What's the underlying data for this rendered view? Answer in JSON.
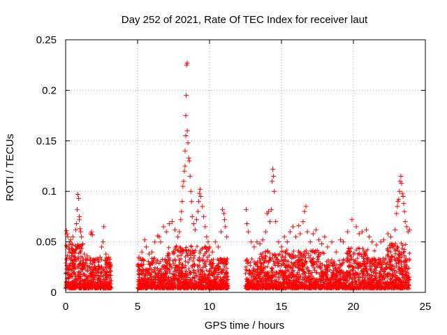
{
  "chart_data": {
    "type": "scatter",
    "title": "Day 252 of 2021, Rate Of TEC Index for receiver laut",
    "xlabel": "GPS time / hours",
    "ylabel": "ROTI / TECUs",
    "xlim": [
      0,
      25
    ],
    "ylim": [
      0,
      0.25
    ],
    "x_ticks": [
      0,
      5,
      10,
      15,
      20,
      25
    ],
    "x_tick_labels": [
      "0",
      "5",
      "10",
      "15",
      "20",
      "25"
    ],
    "y_ticks": [
      0,
      0.05,
      0.1,
      0.15,
      0.2,
      0.25
    ],
    "y_tick_labels": [
      "0",
      "0.05",
      "0.1",
      "0.15",
      "0.2",
      "0.25"
    ],
    "grid": true,
    "marker": "plus",
    "marker_color": "#ff0000",
    "data_gaps_hours": [
      [
        3.2,
        5.0
      ],
      [
        11.3,
        12.5
      ]
    ],
    "series": [
      {
        "name": "ROTI",
        "points": [
          [
            0.05,
            0.061
          ],
          [
            0.1,
            0.058
          ],
          [
            0.15,
            0.055
          ],
          [
            0.2,
            0.045
          ],
          [
            0.3,
            0.05
          ],
          [
            0.35,
            0.052
          ],
          [
            0.45,
            0.047
          ],
          [
            0.5,
            0.055
          ],
          [
            0.55,
            0.042
          ],
          [
            0.6,
            0.035
          ],
          [
            0.7,
            0.062
          ],
          [
            0.75,
            0.068
          ],
          [
            0.8,
            0.082
          ],
          [
            0.85,
            0.097
          ],
          [
            0.9,
            0.093
          ],
          [
            0.95,
            0.075
          ],
          [
            0.95,
            0.072
          ],
          [
            1.0,
            0.063
          ],
          [
            1.05,
            0.06
          ],
          [
            1.1,
            0.055
          ],
          [
            1.2,
            0.048
          ],
          [
            1.3,
            0.038
          ],
          [
            1.5,
            0.036
          ],
          [
            1.7,
            0.034
          ],
          [
            1.75,
            0.058
          ],
          [
            1.8,
            0.06
          ],
          [
            1.85,
            0.057
          ],
          [
            2.0,
            0.025
          ],
          [
            2.2,
            0.033
          ],
          [
            2.4,
            0.035
          ],
          [
            2.5,
            0.045
          ],
          [
            2.6,
            0.05
          ],
          [
            2.65,
            0.065
          ],
          [
            2.8,
            0.038
          ],
          [
            2.9,
            0.032
          ],
          [
            3.0,
            0.035
          ],
          [
            3.1,
            0.028
          ],
          [
            5.1,
            0.035
          ],
          [
            5.3,
            0.04
          ],
          [
            5.5,
            0.052
          ],
          [
            5.6,
            0.045
          ],
          [
            5.8,
            0.038
          ],
          [
            6.0,
            0.04
          ],
          [
            6.2,
            0.05
          ],
          [
            6.4,
            0.056
          ],
          [
            6.5,
            0.055
          ],
          [
            6.6,
            0.05
          ],
          [
            6.8,
            0.065
          ],
          [
            7.0,
            0.06
          ],
          [
            7.2,
            0.068
          ],
          [
            7.4,
            0.07
          ],
          [
            7.6,
            0.062
          ],
          [
            7.8,
            0.055
          ],
          [
            7.9,
            0.06
          ],
          [
            8.0,
            0.072
          ],
          [
            8.05,
            0.08
          ],
          [
            8.1,
            0.09
          ],
          [
            8.15,
            0.105
          ],
          [
            8.2,
            0.11
          ],
          [
            8.25,
            0.12
          ],
          [
            8.3,
            0.125
          ],
          [
            8.3,
            0.14
          ],
          [
            8.35,
            0.155
          ],
          [
            8.35,
            0.175
          ],
          [
            8.38,
            0.195
          ],
          [
            8.4,
            0.225
          ],
          [
            8.45,
            0.227
          ],
          [
            8.45,
            0.16
          ],
          [
            8.5,
            0.148
          ],
          [
            8.55,
            0.133
          ],
          [
            8.6,
            0.13
          ],
          [
            8.65,
            0.115
          ],
          [
            8.7,
            0.1
          ],
          [
            8.75,
            0.09
          ],
          [
            8.8,
            0.075
          ],
          [
            8.9,
            0.068
          ],
          [
            9.0,
            0.062
          ],
          [
            9.1,
            0.072
          ],
          [
            9.2,
            0.08
          ],
          [
            9.25,
            0.09
          ],
          [
            9.3,
            0.098
          ],
          [
            9.35,
            0.102
          ],
          [
            9.4,
            0.095
          ],
          [
            9.5,
            0.085
          ],
          [
            9.6,
            0.075
          ],
          [
            9.7,
            0.065
          ],
          [
            9.8,
            0.055
          ],
          [
            9.9,
            0.05
          ],
          [
            10.0,
            0.045
          ],
          [
            10.2,
            0.04
          ],
          [
            10.4,
            0.05
          ],
          [
            10.6,
            0.045
          ],
          [
            10.8,
            0.06
          ],
          [
            10.9,
            0.082
          ],
          [
            11.0,
            0.078
          ],
          [
            11.05,
            0.072
          ],
          [
            11.1,
            0.065
          ],
          [
            11.2,
            0.055
          ],
          [
            12.55,
            0.082
          ],
          [
            12.6,
            0.068
          ],
          [
            12.7,
            0.06
          ],
          [
            12.9,
            0.05
          ],
          [
            13.1,
            0.045
          ],
          [
            13.3,
            0.05
          ],
          [
            13.5,
            0.048
          ],
          [
            13.7,
            0.052
          ],
          [
            13.9,
            0.06
          ],
          [
            14.0,
            0.078
          ],
          [
            14.1,
            0.08
          ],
          [
            14.2,
            0.07
          ],
          [
            14.3,
            0.082
          ],
          [
            14.35,
            0.11
          ],
          [
            14.4,
            0.122
          ],
          [
            14.45,
            0.115
          ],
          [
            14.5,
            0.1
          ],
          [
            14.6,
            0.07
          ],
          [
            14.8,
            0.05
          ],
          [
            15.0,
            0.045
          ],
          [
            15.2,
            0.055
          ],
          [
            15.4,
            0.05
          ],
          [
            15.6,
            0.06
          ],
          [
            15.8,
            0.065
          ],
          [
            16.0,
            0.055
          ],
          [
            16.2,
            0.066
          ],
          [
            16.3,
            0.058
          ],
          [
            16.5,
            0.07
          ],
          [
            16.6,
            0.08
          ],
          [
            16.7,
            0.085
          ],
          [
            16.8,
            0.06
          ],
          [
            17.0,
            0.05
          ],
          [
            17.2,
            0.058
          ],
          [
            17.4,
            0.062
          ],
          [
            17.6,
            0.052
          ],
          [
            17.8,
            0.048
          ],
          [
            18.0,
            0.055
          ],
          [
            18.2,
            0.045
          ],
          [
            18.5,
            0.05
          ],
          [
            18.8,
            0.04
          ],
          [
            19.1,
            0.052
          ],
          [
            19.3,
            0.05
          ],
          [
            19.6,
            0.06
          ],
          [
            19.9,
            0.072
          ],
          [
            20.2,
            0.065
          ],
          [
            20.4,
            0.058
          ],
          [
            20.6,
            0.06
          ],
          [
            20.9,
            0.062
          ],
          [
            21.1,
            0.055
          ],
          [
            21.3,
            0.05
          ],
          [
            21.6,
            0.047
          ],
          [
            21.9,
            0.05
          ],
          [
            22.1,
            0.052
          ],
          [
            22.4,
            0.058
          ],
          [
            22.6,
            0.055
          ],
          [
            22.9,
            0.062
          ],
          [
            23.0,
            0.078
          ],
          [
            23.05,
            0.085
          ],
          [
            23.1,
            0.09
          ],
          [
            23.15,
            0.092
          ],
          [
            23.2,
            0.1
          ],
          [
            23.25,
            0.11
          ],
          [
            23.3,
            0.115
          ],
          [
            23.35,
            0.108
          ],
          [
            23.4,
            0.098
          ],
          [
            23.45,
            0.095
          ],
          [
            23.5,
            0.088
          ],
          [
            23.55,
            0.08
          ],
          [
            23.6,
            0.07
          ],
          [
            23.7,
            0.065
          ],
          [
            23.8,
            0.06
          ],
          [
            23.9,
            0.062
          ]
        ]
      }
    ]
  }
}
